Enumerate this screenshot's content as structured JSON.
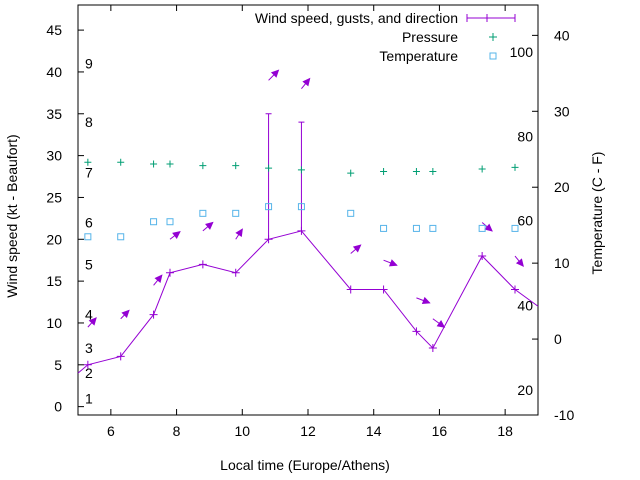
{
  "chart_data": {
    "type": "line",
    "x": [
      5.0,
      5.3,
      6.3,
      7.3,
      7.8,
      8.8,
      9.8,
      10.8,
      11.8,
      13.3,
      14.3,
      15.3,
      15.8,
      17.3,
      18.3,
      19.0
    ],
    "xlabel": "Local time (Europe/Athens)",
    "ylabel": "Wind speed (kt - Beaufort)",
    "y2label": "Temperature (C - F)",
    "xlim": [
      5,
      19
    ],
    "ylim": [
      -1,
      48
    ],
    "y2lim": [
      -10,
      44
    ],
    "xticks": [
      "6",
      "8",
      "10",
      "12",
      "14",
      "16",
      "18"
    ],
    "yticks": [
      "0",
      "5",
      "10",
      "15",
      "20",
      "25",
      "30",
      "35",
      "40",
      "45"
    ],
    "y2ticks": [
      "-10",
      "0",
      "10",
      "20",
      "30",
      "40"
    ],
    "beaufort_labels": [
      {
        "text": "1",
        "y": 1
      },
      {
        "text": "2",
        "y": 4
      },
      {
        "text": "3",
        "y": 7
      },
      {
        "text": "4",
        "y": 11
      },
      {
        "text": "5",
        "y": 17
      },
      {
        "text": "6",
        "y": 22
      },
      {
        "text": "7",
        "y": 28
      },
      {
        "text": "8",
        "y": 34
      },
      {
        "text": "9",
        "y": 41
      }
    ],
    "fahrenheit_labels": [
      {
        "text": "20",
        "y2": -6.7
      },
      {
        "text": "40",
        "y2": 4.4
      },
      {
        "text": "60",
        "y2": 15.6
      },
      {
        "text": "80",
        "y2": 26.7
      },
      {
        "text": "100",
        "y2": 37.8
      }
    ],
    "legend": {
      "placement": "top-right",
      "entries": [
        "Wind speed, gusts, and direction",
        "Pressure",
        "Temperature"
      ]
    },
    "colors": {
      "wind": "#9400d3",
      "pressure": "#009e73",
      "temperature": "#56b4e9"
    },
    "series": [
      {
        "name": "Wind speed, gusts, and direction",
        "x": [
          5.0,
          5.3,
          6.3,
          7.3,
          7.8,
          8.8,
          9.8,
          10.8,
          11.8,
          13.3,
          14.3,
          15.3,
          15.8,
          17.3,
          18.3,
          19.0
        ],
        "values": [
          4,
          5,
          6,
          11,
          16,
          17,
          16,
          20,
          21,
          14,
          14,
          9,
          7,
          18,
          14,
          12
        ],
        "gusts": [
          null,
          null,
          null,
          null,
          null,
          null,
          null,
          35,
          34,
          null,
          null,
          null,
          null,
          null,
          null,
          null
        ],
        "marker": [
          false,
          true,
          true,
          true,
          true,
          true,
          true,
          true,
          true,
          true,
          true,
          true,
          true,
          true,
          true,
          false
        ]
      },
      {
        "name": "Pressure",
        "x": [
          5.3,
          6.3,
          7.3,
          7.8,
          8.8,
          9.8,
          10.8,
          11.8,
          13.3,
          14.3,
          15.3,
          15.8,
          17.3,
          18.3
        ],
        "values": [
          29.2,
          29.2,
          29.0,
          29.0,
          28.8,
          28.8,
          28.5,
          28.3,
          27.9,
          28.1,
          28.1,
          28.1,
          28.4,
          28.6
        ]
      },
      {
        "name": "Temperature",
        "x": [
          5.3,
          6.3,
          7.3,
          7.8,
          8.8,
          9.8,
          10.8,
          11.8,
          13.3,
          14.3,
          15.3,
          15.8,
          17.3,
          18.3
        ],
        "values": [
          20.3,
          20.3,
          22.1,
          22.1,
          23.1,
          23.1,
          23.9,
          23.9,
          23.1,
          21.3,
          21.3,
          21.3,
          21.3,
          21.3
        ]
      }
    ],
    "wind_arrows": [
      {
        "x": 5.3,
        "y": 9.5,
        "dx": 0.25,
        "dy": 1.1
      },
      {
        "x": 6.3,
        "y": 10.5,
        "dx": 0.25,
        "dy": 1.0
      },
      {
        "x": 7.3,
        "y": 14.5,
        "dx": 0.25,
        "dy": 1.2
      },
      {
        "x": 7.8,
        "y": 20,
        "dx": 0.3,
        "dy": 0.9
      },
      {
        "x": 8.8,
        "y": 21,
        "dx": 0.3,
        "dy": 1.0
      },
      {
        "x": 9.8,
        "y": 20,
        "dx": 0.2,
        "dy": 1.2
      },
      {
        "x": 10.8,
        "y": 39,
        "dx": 0.3,
        "dy": 1.2
      },
      {
        "x": 11.8,
        "y": 38,
        "dx": 0.25,
        "dy": 1.2
      },
      {
        "x": 13.3,
        "y": 18.3,
        "dx": 0.3,
        "dy": 1.0
      },
      {
        "x": 14.3,
        "y": 17.5,
        "dx": 0.4,
        "dy": -0.6
      },
      {
        "x": 15.3,
        "y": 13,
        "dx": 0.4,
        "dy": -0.6
      },
      {
        "x": 15.8,
        "y": 10.5,
        "dx": 0.35,
        "dy": -1.0
      },
      {
        "x": 17.3,
        "y": 22,
        "dx": 0.3,
        "dy": -1.0
      },
      {
        "x": 18.3,
        "y": 18,
        "dx": 0.25,
        "dy": -1.2
      }
    ]
  }
}
